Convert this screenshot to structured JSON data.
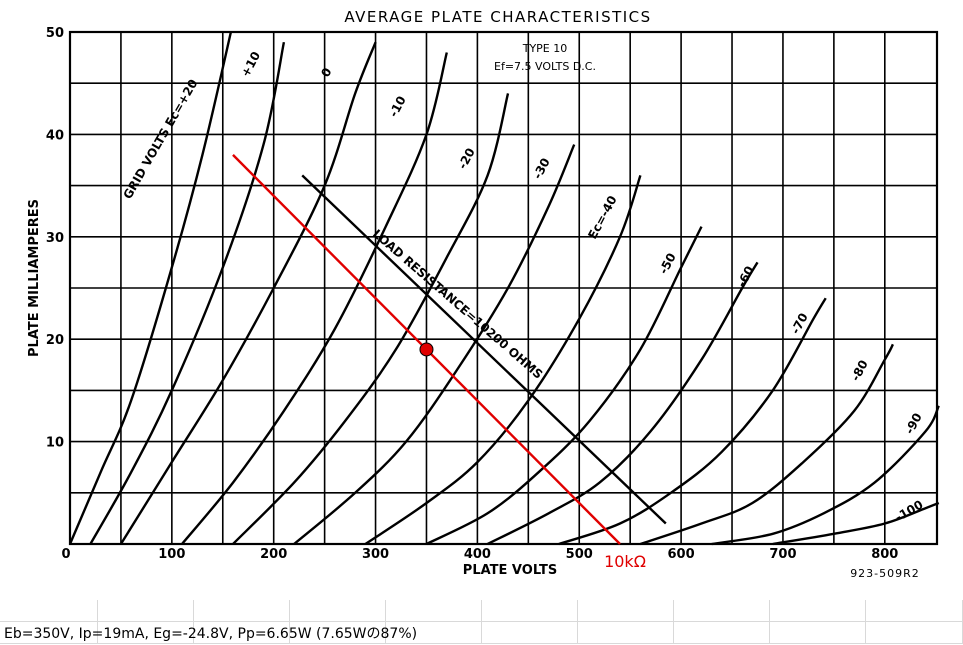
{
  "chart_data": {
    "type": "line",
    "title": "AVERAGE PLATE CHARACTERISTICS",
    "subtitle_lines": [
      "TYPE 10",
      "Ef=7.5 VOLTS D.C."
    ],
    "xlabel": "PLATE VOLTS",
    "ylabel": "PLATE MILLIAMPERES",
    "xlim": [
      0,
      850
    ],
    "ylim": [
      0,
      50
    ],
    "x_ticks": [
      "0",
      "100",
      "200",
      "300",
      "400",
      "500",
      "600",
      "700",
      "800"
    ],
    "y_ticks": [
      "50",
      "40",
      "30",
      "20",
      "10"
    ],
    "grid": true,
    "figure_code": "923-509R2",
    "series": [
      {
        "name": "+20",
        "points": [
          [
            0,
            0
          ],
          [
            30,
            7
          ],
          [
            60,
            14
          ],
          [
            100,
            27
          ],
          [
            130,
            38
          ],
          [
            158,
            50
          ]
        ]
      },
      {
        "name": "+10",
        "points": [
          [
            20,
            0
          ],
          [
            60,
            7
          ],
          [
            100,
            15
          ],
          [
            150,
            27
          ],
          [
            190,
            39
          ],
          [
            210,
            49
          ]
        ]
      },
      {
        "name": "0",
        "points": [
          [
            50,
            0
          ],
          [
            100,
            8
          ],
          [
            150,
            16
          ],
          [
            200,
            25
          ],
          [
            250,
            35
          ],
          [
            280,
            44
          ],
          [
            300,
            49
          ]
        ]
      },
      {
        "name": "-10",
        "points": [
          [
            110,
            0
          ],
          [
            160,
            6
          ],
          [
            210,
            13
          ],
          [
            260,
            21
          ],
          [
            310,
            31
          ],
          [
            350,
            40
          ],
          [
            370,
            48
          ]
        ]
      },
      {
        "name": "-20",
        "points": [
          [
            160,
            0
          ],
          [
            220,
            6
          ],
          [
            270,
            12
          ],
          [
            320,
            19
          ],
          [
            370,
            28
          ],
          [
            410,
            36
          ],
          [
            430,
            44
          ]
        ]
      },
      {
        "name": "-30",
        "points": [
          [
            220,
            0
          ],
          [
            280,
            5
          ],
          [
            330,
            10
          ],
          [
            380,
            17
          ],
          [
            430,
            25
          ],
          [
            470,
            33
          ],
          [
            495,
            39
          ]
        ]
      },
      {
        "name": "-40",
        "points": [
          [
            290,
            0
          ],
          [
            350,
            4
          ],
          [
            400,
            8
          ],
          [
            450,
            14
          ],
          [
            500,
            22
          ],
          [
            540,
            30
          ],
          [
            560,
            36
          ]
        ]
      },
      {
        "name": "-50",
        "points": [
          [
            350,
            0
          ],
          [
            410,
            3
          ],
          [
            460,
            7
          ],
          [
            510,
            12
          ],
          [
            560,
            19
          ],
          [
            600,
            27
          ],
          [
            620,
            31
          ]
        ]
      },
      {
        "name": "-60",
        "points": [
          [
            410,
            0
          ],
          [
            470,
            3
          ],
          [
            520,
            6
          ],
          [
            570,
            11
          ],
          [
            620,
            18
          ],
          [
            660,
            25
          ],
          [
            675,
            27.5
          ]
        ]
      },
      {
        "name": "-70",
        "points": [
          [
            480,
            0
          ],
          [
            540,
            2
          ],
          [
            590,
            5
          ],
          [
            640,
            9
          ],
          [
            690,
            15
          ],
          [
            730,
            22
          ],
          [
            742,
            24
          ]
        ]
      },
      {
        "name": "-80",
        "points": [
          [
            560,
            0
          ],
          [
            620,
            2
          ],
          [
            670,
            4
          ],
          [
            720,
            8
          ],
          [
            770,
            13
          ],
          [
            800,
            18
          ],
          [
            808,
            19.5
          ]
        ]
      },
      {
        "name": "-90",
        "points": [
          [
            630,
            0
          ],
          [
            690,
            1
          ],
          [
            740,
            3
          ],
          [
            790,
            6
          ],
          [
            840,
            11
          ],
          [
            853,
            13.5
          ]
        ]
      },
      {
        "name": "-100",
        "points": [
          [
            690,
            0
          ],
          [
            750,
            1
          ],
          [
            800,
            2
          ],
          [
            840,
            3.5
          ],
          [
            853,
            4
          ]
        ]
      }
    ],
    "curve_labels": {
      "grid_volts": "GRID VOLTS Ec=+20",
      "c10": "+10",
      "c0": "0",
      "c_10": "-10",
      "c_20": "-20",
      "c_30": "-30",
      "c_40": "Ec=-40",
      "c_50": "-50",
      "c_60": "-60",
      "c_70": "-70",
      "c_80": "-80",
      "c_90": "-90",
      "c_100": "-100"
    },
    "load_line_10200": {
      "label": "LOAD RESISTANCE=10200 OHMS",
      "from": [
        228,
        36
      ],
      "to": [
        585,
        2
      ]
    },
    "load_line_10k": {
      "label": "10kΩ",
      "color": "#e00000",
      "from": [
        160,
        38
      ],
      "to": [
        540,
        0
      ]
    },
    "operating_point": {
      "x": 350,
      "y": 19,
      "color": "#e00000"
    }
  },
  "annotation": {
    "text": "Eb=350V, Ip=19mA, Eg=-24.8V, Pp=6.65W (7.65Wの87%)"
  }
}
